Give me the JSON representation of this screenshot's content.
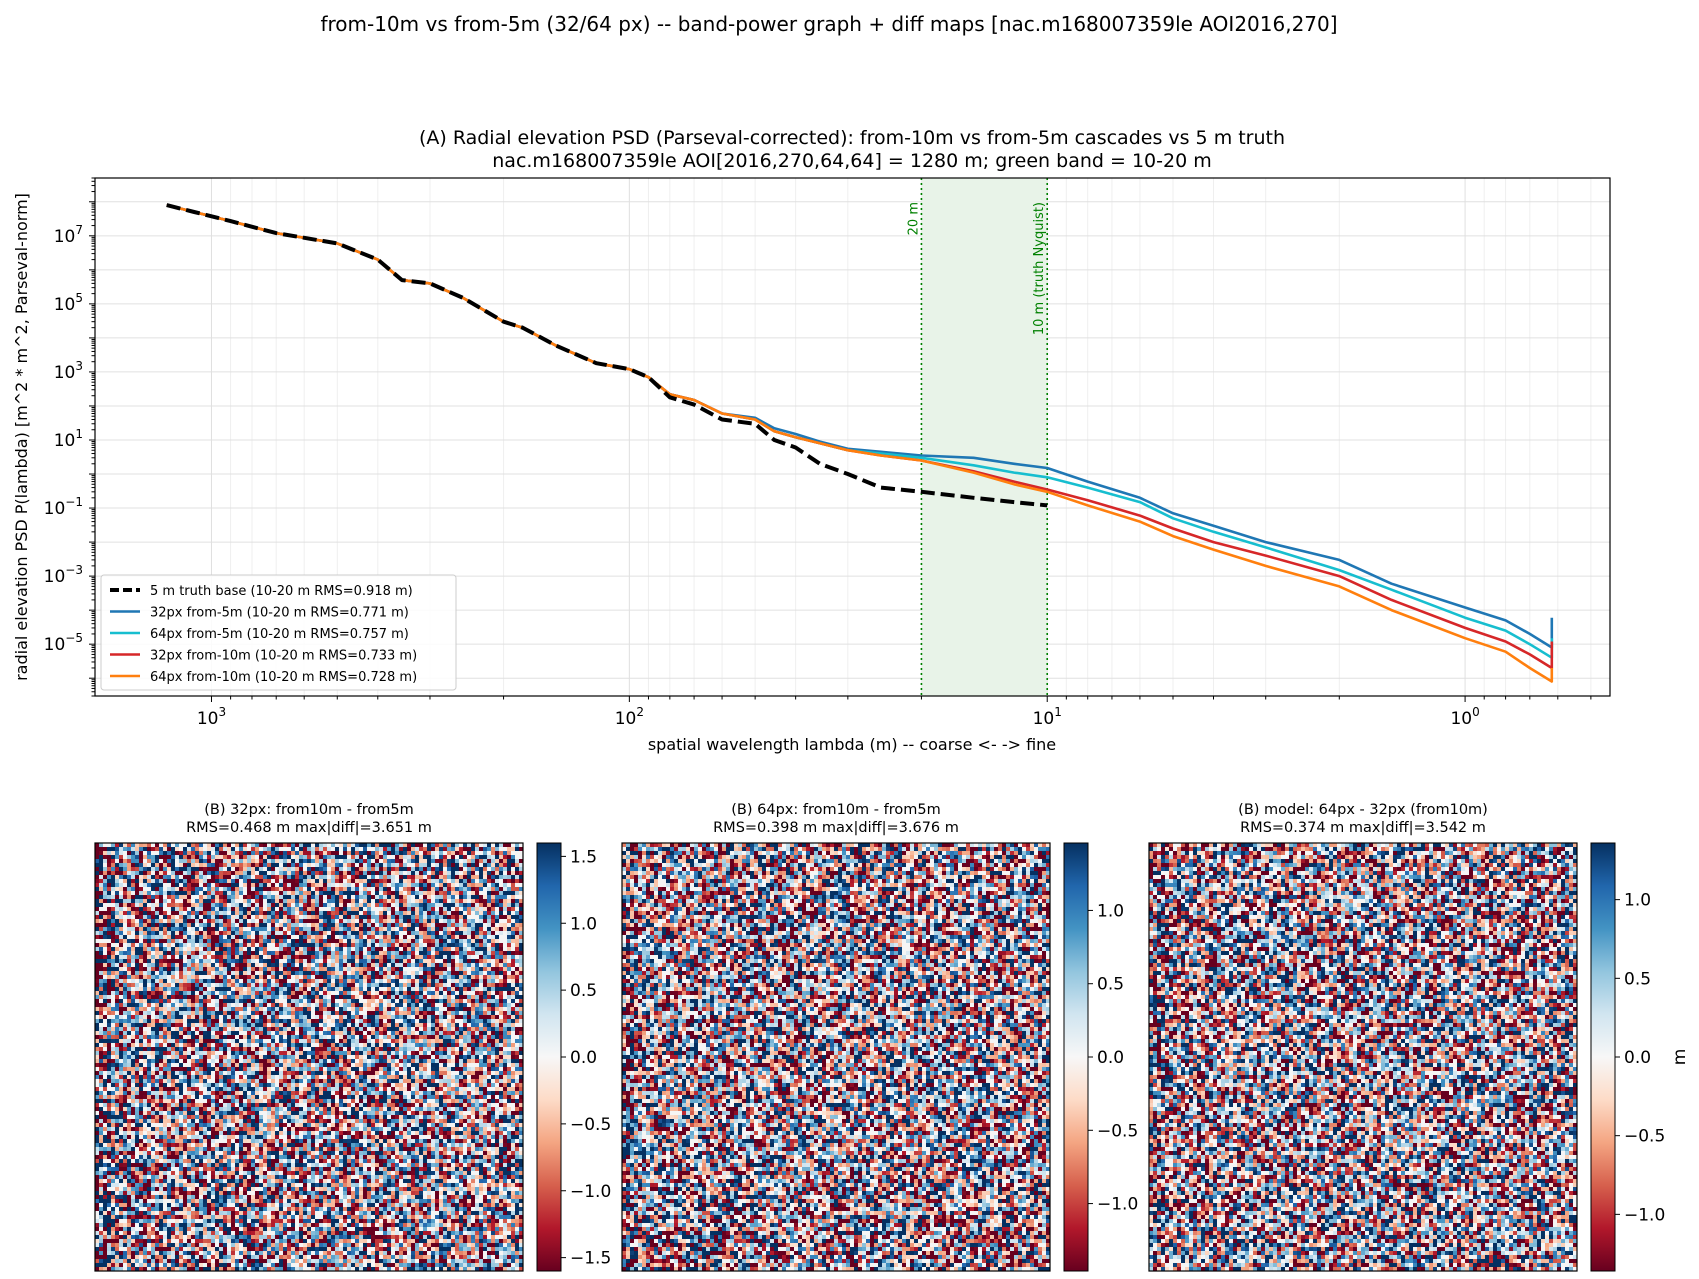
{
  "suptitle": "from-10m vs from-5m (32/64 px) -- band-power graph + diff maps [nac.m168007359le AOI2016,270]",
  "colors": {
    "truth": "#000000",
    "s32_5": "#1f77b4",
    "s64_5": "#17becf",
    "s32_10": "#d62728",
    "s64_10": "#ff7f0e",
    "band_fill": "#e8f3e8",
    "band_line": "#008000",
    "grid": "#e6e6e6"
  },
  "chart_data": [
    {
      "type": "line",
      "panel": "A",
      "title_lines": [
        "(A) Radial elevation PSD (Parseval-corrected): from-10m vs from-5m cascades vs 5 m truth",
        "nac.m168007359le AOI[2016,270,64,64] = 1280 m; green band = 10-20 m"
      ],
      "xlabel": "spatial wavelength lambda (m)  --  coarse <- -> fine",
      "ylabel": "radial elevation PSD  P(lambda)  [m^2 * m^2, Parseval-norm]",
      "x_scale": "log",
      "x_inverted": true,
      "y_scale": "log",
      "xlim": [
        1900,
        0.45
      ],
      "ylim": [
        3e-07,
        500000000.0
      ],
      "x_ticks": [
        {
          "value": 1000,
          "base": "10",
          "exp": "3"
        },
        {
          "value": 100,
          "base": "10",
          "exp": "2"
        },
        {
          "value": 10,
          "base": "10",
          "exp": "1"
        },
        {
          "value": 1,
          "base": "10",
          "exp": "0"
        }
      ],
      "y_ticks": [
        {
          "value": 1e-05,
          "base": "10",
          "exp": "−5"
        },
        {
          "value": 0.001,
          "base": "10",
          "exp": "−3"
        },
        {
          "value": 0.1,
          "base": "10",
          "exp": "−1"
        },
        {
          "value": 10,
          "base": "10",
          "exp": "1"
        },
        {
          "value": 1000,
          "base": "10",
          "exp": "3"
        },
        {
          "value": 100000,
          "base": "10",
          "exp": "5"
        },
        {
          "value": 10000000,
          "base": "10",
          "exp": "7"
        }
      ],
      "grid": true,
      "legend_position": "lower-left",
      "band": {
        "from": 20,
        "to": 10,
        "labels": [
          "20 m",
          "10 m (truth Nyquist)"
        ]
      },
      "series": [
        {
          "name": "5 m truth base  (10-20 m RMS=0.918 m)",
          "color_key": "truth",
          "dashed": true,
          "x": [
            1280,
            1100,
            900,
            700,
            500,
            400,
            350,
            300,
            250,
            200,
            180,
            150,
            120,
            100,
            90,
            80,
            70,
            60,
            50,
            45,
            40,
            35,
            30,
            25,
            20,
            15,
            12,
            10
          ],
          "y": [
            80000000.0,
            50000000.0,
            27000000.0,
            12000000.0,
            6000000.0,
            2000000.0,
            500000.0,
            400000.0,
            150000.0,
            30000.0,
            20000.0,
            6000.0,
            1800.0,
            1200.0,
            700,
            180,
            110,
            40,
            30,
            10,
            6,
            2,
            1,
            0.4,
            0.3,
            0.2,
            0.15,
            0.12
          ]
        },
        {
          "name": "32px from-5m  (10-20 m RMS=0.771 m)",
          "color_key": "s32_5",
          "dashed": false,
          "x": [
            1280,
            1100,
            900,
            700,
            500,
            400,
            350,
            300,
            250,
            200,
            180,
            150,
            120,
            100,
            90,
            80,
            70,
            60,
            50,
            45,
            40,
            35,
            30,
            25,
            20,
            15,
            12,
            10,
            8,
            6,
            5,
            4,
            3,
            2,
            1.5,
            1,
            0.8,
            0.7,
            0.62,
            0.62
          ],
          "y": [
            80000000.0,
            50000000.0,
            27000000.0,
            12000000.0,
            6000000.0,
            2000000.0,
            500000.0,
            400000.0,
            150000.0,
            30000.0,
            20000.0,
            6000.0,
            1800.0,
            1200.0,
            700,
            220,
            150,
            60,
            45,
            22,
            15,
            9,
            5.5,
            4.5,
            3.5,
            3,
            2,
            1.5,
            0.6,
            0.2,
            0.07,
            0.03,
            0.01,
            0.003,
            0.0006,
            0.00012,
            5e-05,
            2e-05,
            8e-06,
            6e-05
          ]
        },
        {
          "name": "64px from-5m  (10-20 m RMS=0.757 m)",
          "color_key": "s64_5",
          "dashed": false,
          "x": [
            1280,
            1100,
            900,
            700,
            500,
            400,
            350,
            300,
            250,
            200,
            180,
            150,
            120,
            100,
            90,
            80,
            70,
            60,
            50,
            45,
            40,
            35,
            30,
            25,
            20,
            15,
            12,
            10,
            8,
            6,
            5,
            4,
            3,
            2,
            1.5,
            1,
            0.8,
            0.7,
            0.62,
            0.62
          ],
          "y": [
            80000000.0,
            50000000.0,
            27000000.0,
            12000000.0,
            6000000.0,
            2000000.0,
            500000.0,
            400000.0,
            150000.0,
            30000.0,
            20000.0,
            6000.0,
            1800.0,
            1200.0,
            700,
            220,
            150,
            60,
            40,
            18,
            12,
            8,
            5,
            4,
            3,
            1.8,
            1.1,
            0.8,
            0.4,
            0.15,
            0.05,
            0.02,
            0.007,
            0.0015,
            0.0004,
            6e-05,
            2.5e-05,
            1e-05,
            4e-06,
            1.5e-05
          ]
        },
        {
          "name": "32px from-10m  (10-20 m RMS=0.733 m)",
          "color_key": "s32_10",
          "dashed": false,
          "x": [
            1280,
            1100,
            900,
            700,
            500,
            400,
            350,
            300,
            250,
            200,
            180,
            150,
            120,
            100,
            90,
            80,
            70,
            60,
            50,
            45,
            40,
            35,
            30,
            25,
            20,
            15,
            12,
            10,
            8,
            6,
            5,
            4,
            3,
            2,
            1.5,
            1,
            0.8,
            0.7,
            0.62,
            0.62
          ],
          "y": [
            80000000.0,
            50000000.0,
            27000000.0,
            12000000.0,
            6000000.0,
            2000000.0,
            500000.0,
            400000.0,
            150000.0,
            30000.0,
            20000.0,
            6000.0,
            1800.0,
            1200.0,
            700,
            220,
            150,
            60,
            40,
            18,
            12,
            8,
            5,
            3.5,
            2.5,
            1.2,
            0.6,
            0.35,
            0.17,
            0.06,
            0.025,
            0.01,
            0.004,
            0.001,
            0.0002,
            3e-05,
            1.2e-05,
            5e-06,
            2e-06,
            1.2e-05
          ]
        },
        {
          "name": "64px from-10m  (10-20 m RMS=0.728 m)",
          "color_key": "s64_10",
          "dashed": false,
          "x": [
            1280,
            1100,
            900,
            700,
            500,
            400,
            350,
            300,
            250,
            200,
            180,
            150,
            120,
            100,
            90,
            80,
            70,
            60,
            50,
            45,
            40,
            35,
            30,
            25,
            20,
            15,
            12,
            10,
            8,
            6,
            5,
            4,
            3,
            2,
            1.5,
            1,
            0.8,
            0.7,
            0.62,
            0.62
          ],
          "y": [
            80000000.0,
            50000000.0,
            27000000.0,
            12000000.0,
            6000000.0,
            2000000.0,
            500000.0,
            400000.0,
            150000.0,
            30000.0,
            20000.0,
            6000.0,
            1800.0,
            1200.0,
            700,
            220,
            150,
            60,
            40,
            18,
            12,
            8,
            5,
            3.5,
            2.5,
            1.1,
            0.5,
            0.3,
            0.12,
            0.04,
            0.015,
            0.006,
            0.002,
            0.0005,
            0.0001,
            1.5e-05,
            6e-06,
            2e-06,
            8e-07,
            2e-06
          ]
        }
      ]
    },
    {
      "type": "heatmap",
      "panel": "B1",
      "title_lines": [
        "(B) 32px: from10m - from5m",
        "RMS=0.468 m  max|diff|=3.651 m"
      ],
      "colorbar_range": [
        -1.6,
        1.6
      ],
      "colorbar_ticks": [
        {
          "value": 1.5,
          "label": "1.5"
        },
        {
          "value": 1.0,
          "label": "1.0"
        },
        {
          "value": 0.5,
          "label": "0.5"
        },
        {
          "value": 0.0,
          "label": "0.0"
        },
        {
          "value": -0.5,
          "label": "−0.5"
        },
        {
          "value": -1.0,
          "label": "−1.0"
        },
        {
          "value": -1.5,
          "label": "−1.5"
        }
      ],
      "colorbar_label": "",
      "seed": 11
    },
    {
      "type": "heatmap",
      "panel": "B2",
      "title_lines": [
        "(B) 64px: from10m - from5m",
        "RMS=0.398 m  max|diff|=3.676 m"
      ],
      "colorbar_range": [
        -1.46,
        1.46
      ],
      "colorbar_ticks": [
        {
          "value": 1.0,
          "label": "1.0"
        },
        {
          "value": 0.5,
          "label": "0.5"
        },
        {
          "value": 0.0,
          "label": "0.0"
        },
        {
          "value": -0.5,
          "label": "−0.5"
        },
        {
          "value": -1.0,
          "label": "−1.0"
        }
      ],
      "colorbar_label": "",
      "seed": 23
    },
    {
      "type": "heatmap",
      "panel": "B3",
      "title_lines": [
        "(B) model: 64px - 32px (from10m)",
        "RMS=0.374 m  max|diff|=3.542 m"
      ],
      "colorbar_range": [
        -1.36,
        1.36
      ],
      "colorbar_ticks": [
        {
          "value": 1.0,
          "label": "1.0"
        },
        {
          "value": 0.5,
          "label": "0.5"
        },
        {
          "value": 0.0,
          "label": "0.0"
        },
        {
          "value": -0.5,
          "label": "−0.5"
        },
        {
          "value": -1.0,
          "label": "−1.0"
        }
      ],
      "colorbar_label": "m",
      "seed": 37
    }
  ]
}
